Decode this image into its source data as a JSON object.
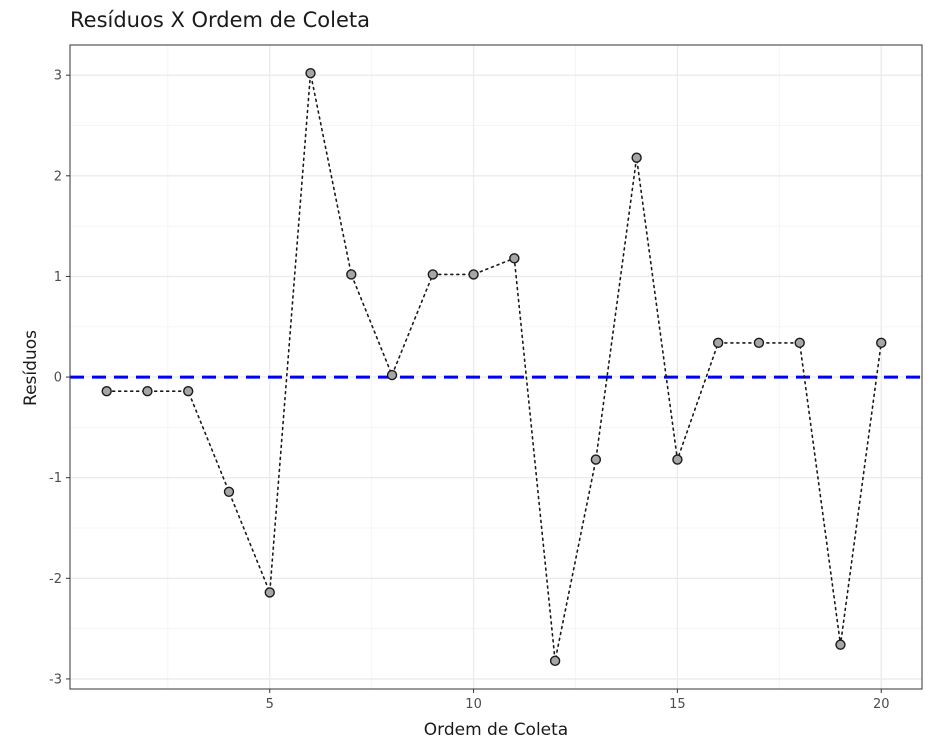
{
  "chart_data": {
    "type": "scatter",
    "title": "Resíduos X Ordem de Coleta",
    "xlabel": "Ordem de Coleta",
    "ylabel": "Resíduos",
    "xlim": [
      0.1,
      21.0
    ],
    "ylim": [
      -3.1,
      3.3
    ],
    "xticks": [
      5,
      10,
      15,
      20
    ],
    "yticks": [
      -3,
      -2,
      -1,
      0,
      1,
      2,
      3
    ],
    "grid": true,
    "connect_points": "dotted",
    "reference_line": {
      "y": 0,
      "style": "dashed",
      "color": "#0000ff"
    },
    "series": [
      {
        "x": [
          1,
          2,
          3,
          4,
          5,
          6,
          7,
          8,
          9,
          10,
          11,
          12,
          13,
          14,
          15,
          16,
          17,
          18,
          19,
          20
        ],
        "y": [
          -0.14,
          -0.14,
          -0.14,
          -1.14,
          -2.14,
          3.02,
          1.02,
          0.02,
          1.02,
          1.02,
          1.18,
          -2.82,
          -0.82,
          2.18,
          -0.82,
          0.34,
          0.34,
          0.34,
          -2.66,
          0.34
        ]
      }
    ],
    "colors": {
      "point_fill": "#a6a6a6",
      "point_stroke": "#1a1a1a",
      "line": "#1a1a1a",
      "panel_border": "#333333",
      "grid_major": "#ebebeb",
      "grid_minor": "#f5f5f5"
    }
  }
}
